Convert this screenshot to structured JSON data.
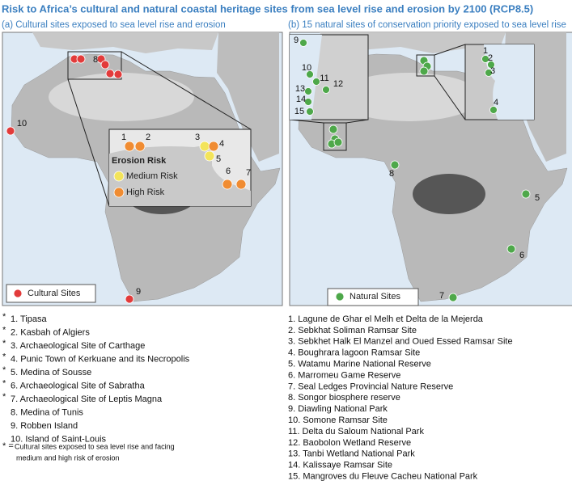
{
  "title": "Risk to Africa’s cultural and natural coastal heritage sites from sea level rise and erosion by 2100 (RCP8.5)",
  "panels": [
    {
      "subtitle": "(a) Cultural sites exposed to sea level rise and erosion",
      "legend": "Cultural Sites",
      "inset_legend": {
        "title": "Erosion Risk",
        "items": [
          "Medium Risk",
          "High Risk"
        ]
      },
      "map_labels": [
        "1",
        "2",
        "3",
        "4",
        "5",
        "6",
        "7",
        "8",
        "9",
        "10"
      ],
      "list": [
        {
          "marker": "*",
          "text": "1. Tipasa"
        },
        {
          "marker": "*",
          "text": "2. Kasbah of Algiers"
        },
        {
          "marker": "*",
          "text": "3. Archaeological Site of Carthage"
        },
        {
          "marker": "*",
          "text": "4. Punic Town of Kerkuane and its Necropolis"
        },
        {
          "marker": "*",
          "text": "5. Medina of Sousse"
        },
        {
          "marker": "*",
          "text": "6. Archaeological Site of Sabratha"
        },
        {
          "marker": "*",
          "text": "7. Archaeological Site of Leptis Magna"
        },
        {
          "text": "8. Medina of Tunis"
        },
        {
          "text": "9. Robben Island"
        },
        {
          "text": "10. Island of Saint-Louis"
        }
      ],
      "footnote": {
        "marker": "* =",
        "lines": [
          "Cultural sites exposed to sea level rise and facing",
          "medium and high risk of erosion"
        ]
      }
    },
    {
      "subtitle": "(b) 15 natural sites of conservation priority exposed to sea level rise",
      "legend": "Natural Sites",
      "map_labels": [
        "1",
        "2",
        "3",
        "4",
        "5",
        "6",
        "7",
        "8",
        "9",
        "10",
        "11",
        "12",
        "13",
        "14",
        "15"
      ],
      "list": [
        {
          "text": "1. Lagune de Ghar el Melh et Delta de la Mejerda"
        },
        {
          "text": "2. Sebkhat Soliman Ramsar Site"
        },
        {
          "text": "3. Sebkhet Halk El Manzel and Oued Essed Ramsar Site"
        },
        {
          "text": "4. Boughrara lagoon Ramsar Site"
        },
        {
          "text": "5. Watamu Marine National Reserve"
        },
        {
          "text": "6. Marromeu Game Reserve"
        },
        {
          "text": "7. Seal Ledges Provincial Nature Reserve"
        },
        {
          "text": "8. Songor biosphere reserve"
        },
        {
          "text": "9. Diawling National Park"
        },
        {
          "text": "10. Somone Ramsar Site"
        },
        {
          "text": "11. Delta du Saloum National Park"
        },
        {
          "text": "12. Baobolon Wetland Reserve"
        },
        {
          "text": "13. Tanbi Wetland National Park"
        },
        {
          "text": "14. Kalissaye Ramsar Site"
        },
        {
          "text": "15. Mangroves du Fleuve Cacheu National Park"
        }
      ]
    }
  ]
}
